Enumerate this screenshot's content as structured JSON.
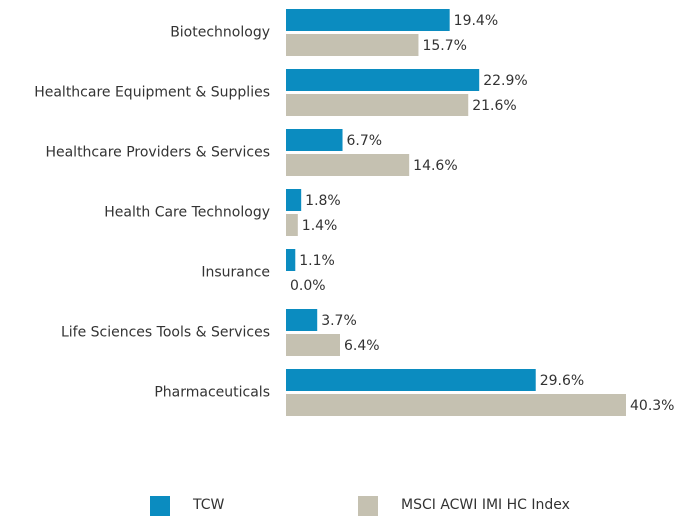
{
  "chart_data": {
    "type": "bar",
    "orientation": "horizontal",
    "categories": [
      "Biotechnology",
      "Healthcare Equipment & Supplies",
      "Healthcare Providers & Services",
      "Health Care Technology",
      "Insurance",
      "Life Sciences Tools & Services",
      "Pharmaceuticals"
    ],
    "series": [
      {
        "name": "TCW",
        "color": "#0b8cc0",
        "values": [
          19.4,
          22.9,
          6.7,
          1.8,
          1.1,
          3.7,
          29.6
        ],
        "value_labels": [
          "19.4%",
          "22.9%",
          "6.7%",
          "1.8%",
          "1.1%",
          "3.7%",
          "29.6%"
        ]
      },
      {
        "name": "MSCI ACWI IMI HC Index",
        "color": "#c5c1b1",
        "values": [
          15.7,
          21.6,
          14.6,
          1.4,
          0.0,
          6.4,
          40.3
        ],
        "value_labels": [
          "15.7%",
          "21.6%",
          "14.6%",
          "1.4%",
          "0.0%",
          "6.4%",
          "40.3%"
        ]
      }
    ],
    "legend": "bottom"
  }
}
